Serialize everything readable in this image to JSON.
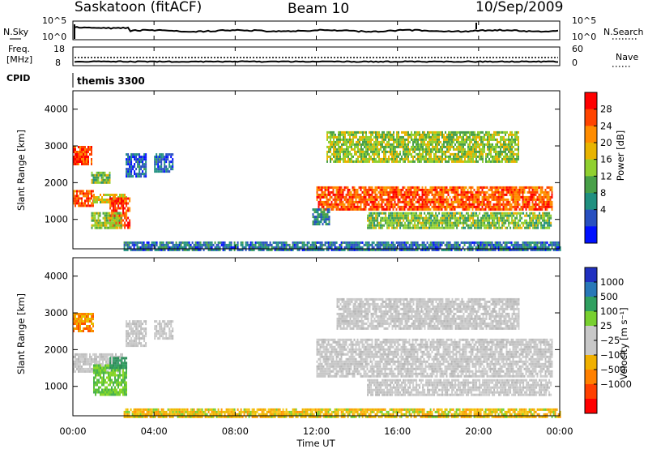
{
  "header": {
    "station": "Saskatoon (fitACF)",
    "beam": "Beam 10",
    "date": "10/Sep/2009"
  },
  "noise_panel": {
    "left_label": "N.Sky",
    "right_label": "N.Search",
    "y_ticks_left": [
      "10^5",
      "10^0"
    ],
    "y_ticks_right": [
      "10^5",
      "10^0"
    ]
  },
  "freq_panel": {
    "left_label_line1": "Freq.",
    "left_label_line2": "[MHz]",
    "right_label": "Nave",
    "y_ticks_left": [
      "18",
      "8"
    ],
    "y_ticks_right": [
      "60",
      "0"
    ]
  },
  "cpid_panel": {
    "label": "CPID",
    "program": "themis 3300"
  },
  "power_panel": {
    "ylabel": "Slant Range [km]",
    "colorbar_label": "Power [dB]",
    "colorbar_ticks": [
      "28",
      "24",
      "20",
      "16",
      "12",
      "8",
      "4"
    ],
    "colorbar_colors": [
      "#ff0000",
      "#ff4400",
      "#ff8c00",
      "#e8b400",
      "#90d030",
      "#48a048",
      "#209080",
      "#2850c0",
      "#0010ff"
    ]
  },
  "velocity_panel": {
    "ylabel": "Slant Range [km]",
    "colorbar_label": "Velocity  [m s⁻¹]",
    "colorbar_ticks": [
      "1000",
      "500",
      "100",
      "25",
      "−25",
      "−100",
      "−500",
      "−1000"
    ],
    "colorbar_colors": [
      "#2030c0",
      "#2878b8",
      "#30a060",
      "#78d030",
      "#c8c8c8",
      "#c8c8c8",
      "#f0b000",
      "#ff8000",
      "#ff4000",
      "#ff0000"
    ]
  },
  "x_axis": {
    "label": "Time UT",
    "ticks": [
      "00:00",
      "04:00",
      "08:00",
      "12:00",
      "16:00",
      "20:00",
      "00:00"
    ]
  },
  "chart_data": {
    "type": "heatmap",
    "x_range_hours": [
      0,
      24
    ],
    "y_range_km": [
      200,
      4500
    ],
    "y_ticks_km": [
      1000,
      2000,
      3000,
      4000
    ],
    "power_regions": [
      {
        "t": [
          0.0,
          0.9
        ],
        "r": [
          2500,
          3000
        ],
        "level": 0.9
      },
      {
        "t": [
          0.0,
          1.0
        ],
        "r": [
          1400,
          1800
        ],
        "level": 0.85
      },
      {
        "t": [
          1.0,
          2.6
        ],
        "r": [
          1500,
          1700
        ],
        "level": 0.6
      },
      {
        "t": [
          1.8,
          2.8
        ],
        "r": [
          800,
          1600
        ],
        "level": 0.9
      },
      {
        "t": [
          0.9,
          2.4
        ],
        "r": [
          800,
          1200
        ],
        "level": 0.5
      },
      {
        "t": [
          0.9,
          1.9
        ],
        "r": [
          2000,
          2300
        ],
        "level": 0.45
      },
      {
        "t": [
          2.6,
          3.6
        ],
        "r": [
          2200,
          2800
        ],
        "level": 0.15
      },
      {
        "t": [
          4.0,
          4.9
        ],
        "r": [
          2300,
          2800
        ],
        "level": 0.15
      },
      {
        "t": [
          12.0,
          23.6
        ],
        "r": [
          1300,
          1900
        ],
        "level": 0.85
      },
      {
        "t": [
          12.5,
          22.0
        ],
        "r": [
          2600,
          3400
        ],
        "level": 0.5
      },
      {
        "t": [
          14.5,
          23.6
        ],
        "r": [
          800,
          1200
        ],
        "level": 0.45
      },
      {
        "t": [
          11.8,
          12.6
        ],
        "r": [
          900,
          1300
        ],
        "level": 0.25
      },
      {
        "t": [
          2.5,
          24.0
        ],
        "r": [
          200,
          400
        ],
        "level": 0.2
      }
    ],
    "velocity_regions": [
      {
        "t": [
          0.0,
          1.0
        ],
        "r": [
          2500,
          3000
        ],
        "color": "orange"
      },
      {
        "t": [
          0.0,
          2.4
        ],
        "r": [
          1400,
          1900
        ],
        "color": "gray"
      },
      {
        "t": [
          1.0,
          2.6
        ],
        "r": [
          800,
          1600
        ],
        "color": "green"
      },
      {
        "t": [
          1.8,
          2.6
        ],
        "r": [
          1500,
          1800
        ],
        "color": "darkgreen"
      },
      {
        "t": [
          2.6,
          3.6
        ],
        "r": [
          2100,
          2800
        ],
        "color": "gray"
      },
      {
        "t": [
          4.0,
          4.9
        ],
        "r": [
          2300,
          2800
        ],
        "color": "gray"
      },
      {
        "t": [
          12.0,
          23.6
        ],
        "r": [
          1300,
          2300
        ],
        "color": "gray"
      },
      {
        "t": [
          13.0,
          22.0
        ],
        "r": [
          2600,
          3400
        ],
        "color": "gray"
      },
      {
        "t": [
          14.5,
          23.6
        ],
        "r": [
          800,
          1200
        ],
        "color": "gray"
      },
      {
        "t": [
          2.5,
          24.0
        ],
        "r": [
          200,
          400
        ],
        "color": "yellow"
      }
    ]
  }
}
